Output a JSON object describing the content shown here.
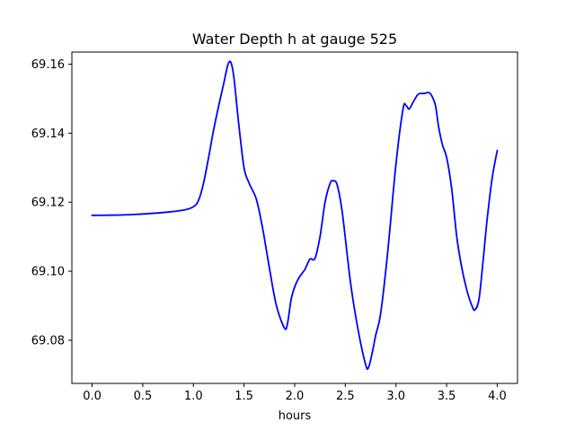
{
  "chart_data": {
    "type": "line",
    "title": "Water Depth h at gauge 525",
    "xlabel": "hours",
    "ylabel": "",
    "xlim": [
      -0.2,
      4.2
    ],
    "ylim": [
      69.0675,
      69.1635
    ],
    "xticks": [
      0.0,
      0.5,
      1.0,
      1.5,
      2.0,
      2.5,
      3.0,
      3.5,
      4.0
    ],
    "xtick_labels": [
      "0.0",
      "0.5",
      "1.0",
      "1.5",
      "2.0",
      "2.5",
      "3.0",
      "3.5",
      "4.0"
    ],
    "yticks": [
      69.08,
      69.1,
      69.12,
      69.14,
      69.16
    ],
    "ytick_labels": [
      "69.08",
      "69.10",
      "69.12",
      "69.14",
      "69.16"
    ],
    "grid": false,
    "series": [
      {
        "color": "#0000ff",
        "x": [
          0.0,
          0.3,
          0.5,
          0.7,
          0.9,
          1.0,
          1.05,
          1.1,
          1.15,
          1.2,
          1.25,
          1.3,
          1.34,
          1.37,
          1.4,
          1.45,
          1.5,
          1.55,
          1.62,
          1.68,
          1.75,
          1.82,
          1.9,
          1.93,
          1.97,
          2.03,
          2.1,
          2.15,
          2.2,
          2.25,
          2.3,
          2.35,
          2.38,
          2.42,
          2.47,
          2.55,
          2.62,
          2.7,
          2.73,
          2.77,
          2.8,
          2.85,
          2.92,
          3.0,
          3.07,
          3.1,
          3.13,
          3.17,
          3.22,
          3.28,
          3.32,
          3.35,
          3.39,
          3.42,
          3.46,
          3.5,
          3.55,
          3.6,
          3.65,
          3.7,
          3.75,
          3.78,
          3.82,
          3.86,
          3.9,
          3.95,
          4.0
        ],
        "y": [
          69.1162,
          69.1163,
          69.1166,
          69.117,
          69.1177,
          69.1187,
          69.1205,
          69.1255,
          69.133,
          69.141,
          69.148,
          69.1545,
          69.1598,
          69.1605,
          69.156,
          69.142,
          69.13,
          69.1255,
          69.121,
          69.113,
          69.101,
          69.09,
          69.0835,
          69.085,
          69.0925,
          69.0975,
          69.1005,
          69.1035,
          69.1037,
          69.11,
          69.12,
          69.1255,
          69.1262,
          69.125,
          69.117,
          69.097,
          69.084,
          69.073,
          69.0722,
          69.077,
          69.0815,
          69.088,
          69.106,
          69.131,
          69.147,
          69.148,
          69.147,
          69.149,
          69.1513,
          69.1515,
          69.1518,
          69.151,
          69.148,
          69.142,
          69.1365,
          69.133,
          69.124,
          69.11,
          69.101,
          69.0945,
          69.09,
          69.0888,
          69.092,
          69.103,
          69.115,
          69.127,
          69.135
        ]
      }
    ]
  }
}
